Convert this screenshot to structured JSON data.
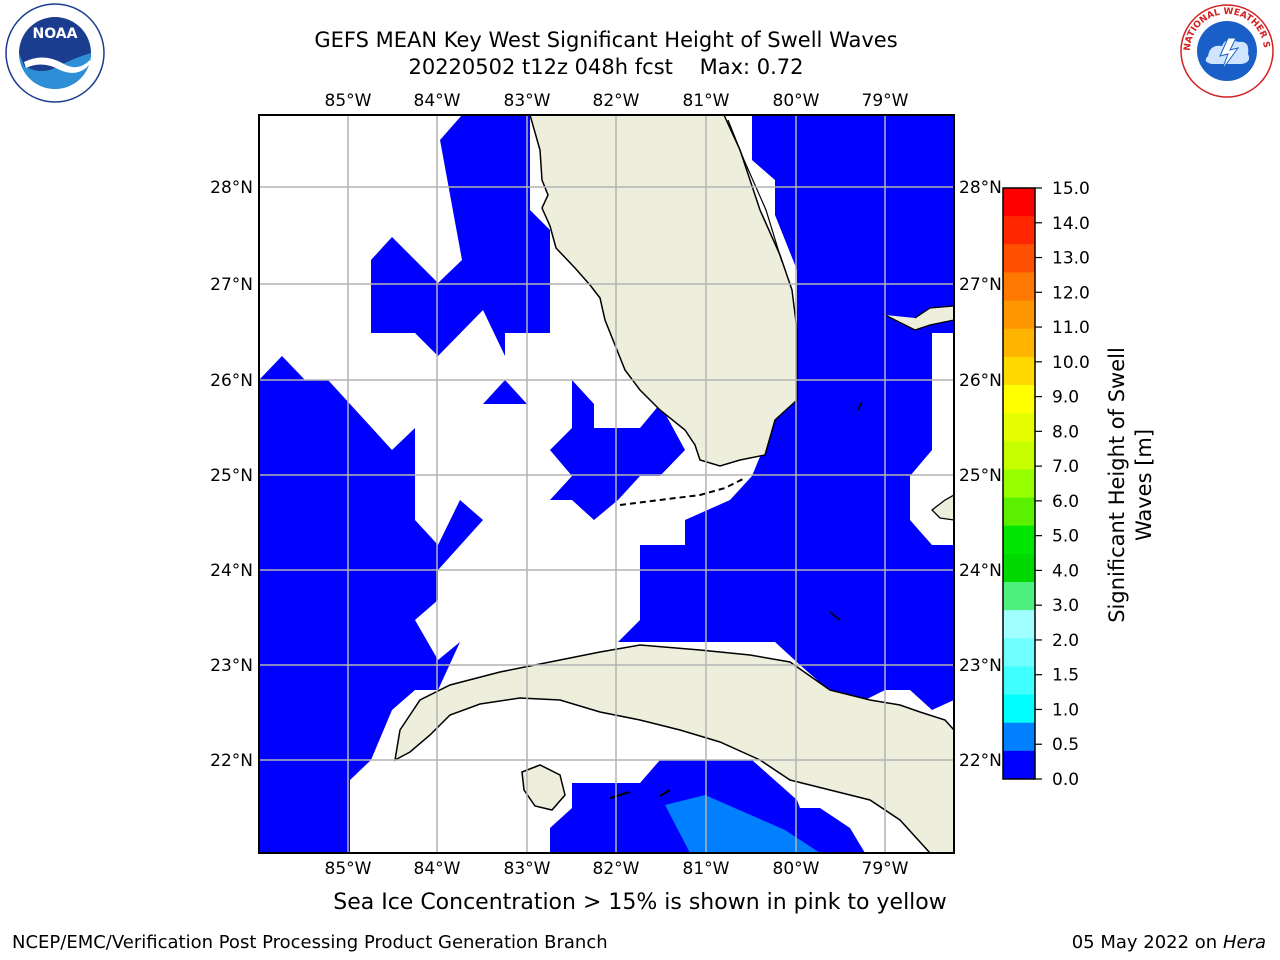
{
  "title_line1": "GEFS MEAN Key West Significant Height of Swell Waves",
  "title_line2": "20220502 t12z 048h fcst",
  "max_label": "Max: 0.72",
  "lon_labels": [
    "85°W",
    "84°W",
    "83°W",
    "82°W",
    "81°W",
    "80°W",
    "79°W"
  ],
  "lat_labels": [
    "28°N",
    "27°N",
    "26°N",
    "25°N",
    "24°N",
    "23°N",
    "22°N"
  ],
  "colorbar": {
    "ticks": [
      "15.0",
      "14.0",
      "13.0",
      "12.0",
      "11.0",
      "10.0",
      "9.0",
      "8.0",
      "7.0",
      "6.0",
      "5.0",
      "4.0",
      "3.0",
      "2.0",
      "1.5",
      "1.0",
      "0.5",
      "0.0"
    ],
    "label_line1": "Significant Height of Swell",
    "label_line2": "Waves [m]",
    "colors": [
      "#ff0000",
      "#ff2600",
      "#ff5000",
      "#ff7800",
      "#ff9600",
      "#ffb400",
      "#ffd800",
      "#ffff00",
      "#e6ff00",
      "#c8ff00",
      "#96ff00",
      "#5af000",
      "#00e600",
      "#00d900",
      "#50f080",
      "#a0ffff",
      "#70ffff",
      "#40ffff",
      "#00ffff",
      "#0080ff",
      "#0000ff"
    ]
  },
  "map_colors": {
    "land": "#eeeedd",
    "water_swell": "#0000ff",
    "water_high": "#0080ff",
    "coast": "#000000"
  },
  "footer": {
    "note": "Sea Ice Concentration > 15% is shown in pink to yellow",
    "credit": "NCEP/EMC/Verification Post Processing Product Generation Branch",
    "date": "05 May 2022 on",
    "host": "Hera"
  },
  "logos": {
    "noaa_text": "NOAA",
    "nws_text": "NATIONAL WEATHER SERVICE"
  }
}
